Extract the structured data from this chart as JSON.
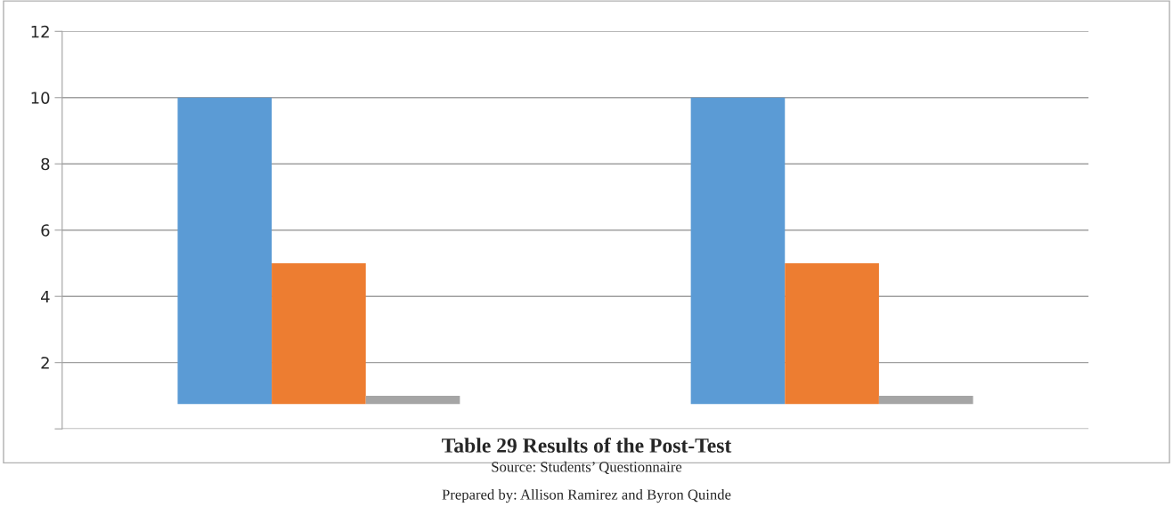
{
  "chart_data": {
    "type": "bar",
    "title": "Table 29 Results of the Post-Test",
    "categories": [
      null,
      null
    ],
    "series": [
      {
        "color": "#5b9bd5",
        "values": [
          9.25,
          9.25
        ],
        "base": [
          0.75,
          0.75
        ]
      },
      {
        "color": "#ed7d31",
        "values": [
          4.25,
          4.25
        ],
        "base": [
          0.75,
          0.75
        ]
      },
      {
        "color": "#a5a5a5",
        "values": [
          0.25,
          0.25
        ],
        "base": [
          0.75,
          0.75
        ]
      }
    ],
    "ylim": [
      0,
      12
    ],
    "yticks": [
      {
        "value": 0,
        "label": null
      },
      2,
      4,
      6,
      8,
      10,
      12
    ],
    "grid": "y",
    "annotations": [
      "Source: Students’ Questionnaire",
      "Prepared by: Allison Ramirez and Byron Quinde"
    ]
  }
}
